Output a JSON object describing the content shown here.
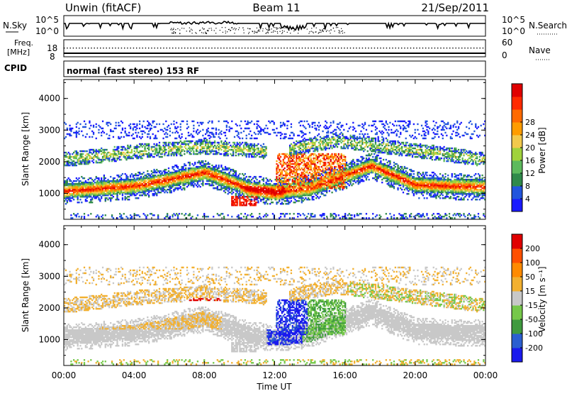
{
  "header": {
    "radar": "Unwin (fitACF)",
    "beam": "Beam 11",
    "date": "21/Sep/2011"
  },
  "status": {
    "nsky_label": "N.Sky",
    "nsearch_label": "N.Search",
    "freq_label_1": "Freq.",
    "freq_label_2": "[MHz]",
    "nave_label": "Nave",
    "cpid_label": "CPID",
    "mode_text": "normal (fast stereo) 153 RF",
    "noise_ticks_left": [
      "10^5",
      "10^0"
    ],
    "noise_ticks_right": [
      "10^5",
      "10^0"
    ],
    "freq_ticks": [
      "18",
      "8"
    ],
    "nave_ticks": [
      "60",
      "0"
    ]
  },
  "chart_data": [
    {
      "type": "heatmap",
      "panel": "power",
      "ylabel": "Slant Range [km]",
      "xlabel": "Time UT",
      "xlim": [
        "00:00",
        "24:00"
      ],
      "ylim": [
        180,
        4600
      ],
      "x_ticks": [
        "00:00",
        "04:00",
        "08:00",
        "12:00",
        "16:00",
        "20:00",
        "00:00"
      ],
      "y_ticks": [
        1000,
        2000,
        3000,
        4000
      ],
      "colorbar_label": "Power [dB]",
      "colorbar_ticks": [
        4,
        8,
        12,
        16,
        20,
        24,
        28
      ],
      "colorbar_colors": [
        "#1a1aff",
        "#2255dd",
        "#2f8a4a",
        "#5dba5d",
        "#a0d23c",
        "#f2c94c",
        "#ff9c00",
        "#ff6a00",
        "#ff2a00",
        "#e00000"
      ]
    },
    {
      "type": "heatmap",
      "panel": "velocity",
      "ylabel": "Slant Range [km]",
      "xlabel": "Time UT",
      "xlim": [
        "00:00",
        "24:00"
      ],
      "ylim": [
        180,
        4600
      ],
      "x_ticks": [
        "00:00",
        "04:00",
        "08:00",
        "12:00",
        "16:00",
        "20:00",
        "00:00"
      ],
      "y_ticks": [
        1000,
        2000,
        3000,
        4000
      ],
      "colorbar_label": "Velocity [m s⁻¹]",
      "colorbar_ticks": [
        200,
        100,
        50,
        15,
        -15,
        -50,
        -100,
        -200
      ],
      "colorbar_colors": [
        "#1a1aee",
        "#2b5fd0",
        "#3f9a3f",
        "#76c84a",
        "#c8c8c8",
        "#f2b030",
        "#ff8a00",
        "#ff5000",
        "#e00000"
      ]
    }
  ]
}
